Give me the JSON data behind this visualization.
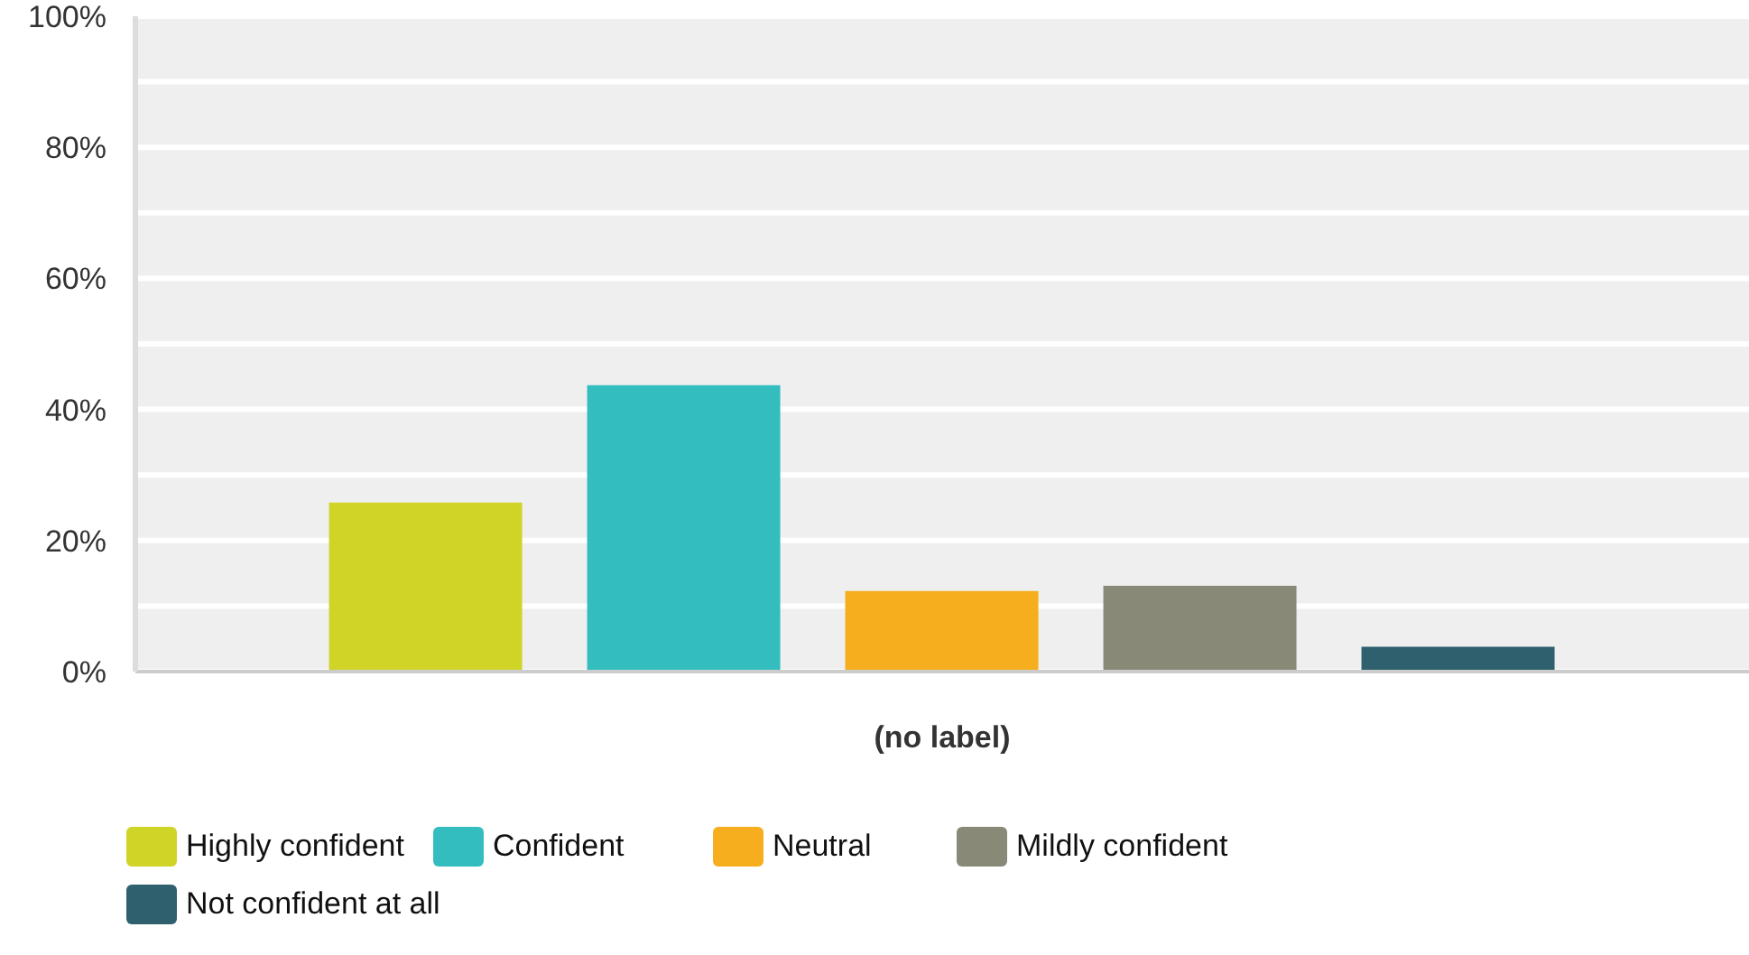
{
  "chart_data": {
    "type": "bar",
    "categories": [
      "(no label)"
    ],
    "series": [
      {
        "name": "Highly confident",
        "color": "#cfd427",
        "values": [
          25.8
        ]
      },
      {
        "name": "Confident",
        "color": "#34bdbf",
        "values": [
          43.7
        ]
      },
      {
        "name": "Neutral",
        "color": "#f6ae1e",
        "values": [
          12.3
        ]
      },
      {
        "name": "Mildly confident",
        "color": "#898978",
        "values": [
          13.1
        ]
      },
      {
        "name": "Not confident at all",
        "color": "#2f606e",
        "values": [
          3.8
        ]
      }
    ],
    "ylim": [
      0,
      100
    ],
    "yticks": [
      {
        "value": 0,
        "label": "0%"
      },
      {
        "value": 10,
        "label": null
      },
      {
        "value": 20,
        "label": "20%"
      },
      {
        "value": 30,
        "label": null
      },
      {
        "value": 40,
        "label": "40%"
      },
      {
        "value": 50,
        "label": null
      },
      {
        "value": 60,
        "label": "60%"
      },
      {
        "value": 70,
        "label": null
      },
      {
        "value": 80,
        "label": "80%"
      },
      {
        "value": 90,
        "label": null
      },
      {
        "value": 100,
        "label": "100%"
      }
    ],
    "grid": "y",
    "legend": "bottom"
  }
}
